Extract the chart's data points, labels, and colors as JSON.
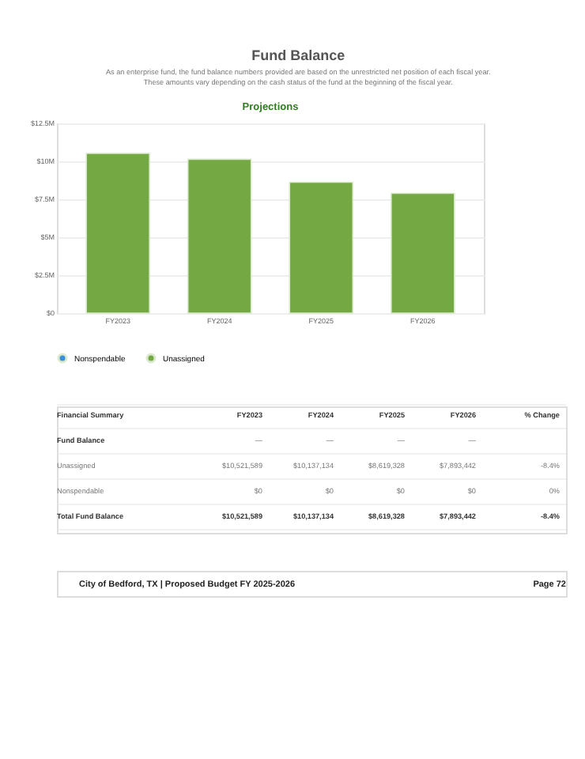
{
  "chart_data": {
    "type": "bar",
    "stacked": true,
    "title": "Fund Balance",
    "subtitle": "As an enterprise fund, the fund balance numbers provided are based on the unrestricted net position of each fiscal year.\nThese amounts vary depending on the cash status of the fund at the beginning of the fiscal year.",
    "categories": [
      "FY2023",
      "FY2024",
      "FY2025",
      "FY2026"
    ],
    "series": [
      {
        "name": "Nonspendable",
        "color": "#3a8fd9",
        "values": [
          0,
          0,
          0,
          0
        ]
      },
      {
        "name": "Unassigned",
        "color": "#74a842",
        "values": [
          10521589,
          10137134,
          8619328,
          7893442
        ]
      }
    ],
    "ylim": [
      0,
      12500000
    ],
    "yticks": [
      {
        "value": 0,
        "label": "$0"
      },
      {
        "value": 2500000,
        "label": "$2.5M"
      },
      {
        "value": 5000000,
        "label": "$5M"
      },
      {
        "value": 7500000,
        "label": "$7.5M"
      },
      {
        "value": 10000000,
        "label": "$10M"
      },
      {
        "value": 12500000,
        "label": "$12.5M"
      }
    ],
    "grid": "y",
    "legend": "bottom",
    "annotations": [
      "Projections",
      "Financial Summary",
      "% Change",
      "Fund Balance",
      "—",
      "—",
      "—",
      "—",
      "-8.4%",
      "0%",
      "Total Fund Balance",
      "-8.4%",
      "City of Bedford, TX | Proposed Budget FY 2025-2026",
      "Page 72",
      "$10,521,589",
      "$10,137,134",
      "$8,619,328",
      "$7,893,442",
      "$10,521,589",
      "$10,137,134",
      "$8,619,328",
      "$7,893,442",
      "$0",
      "$0",
      "$0",
      "$0"
    ]
  }
}
